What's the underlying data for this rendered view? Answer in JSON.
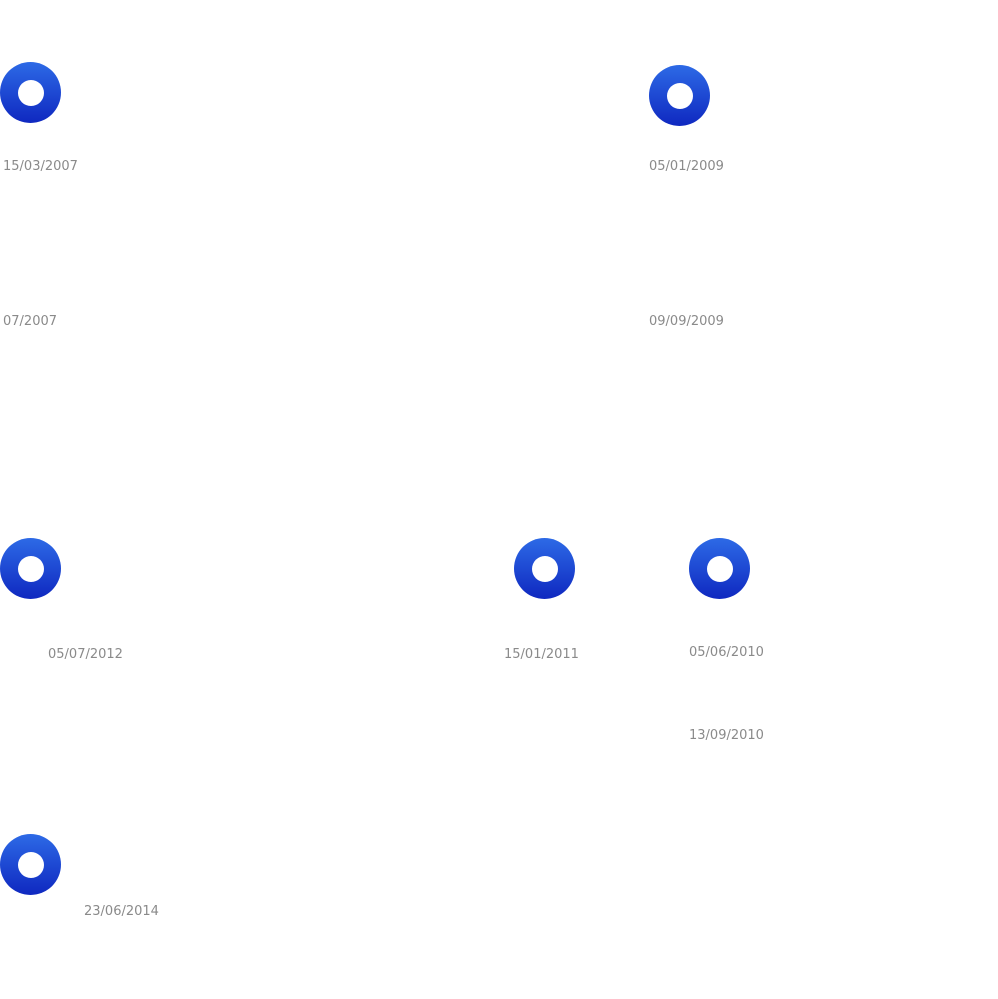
{
  "theme": {
    "marker_color_top": "#2d6ae6",
    "marker_color_bottom": "#0f28c0",
    "date_color": "#8a8a8a",
    "background": "#ffffff"
  },
  "markers": [
    {
      "icon": "ring-marker-icon"
    },
    {
      "icon": "ring-marker-icon"
    },
    {
      "icon": "ring-marker-icon"
    },
    {
      "icon": "ring-marker-icon"
    },
    {
      "icon": "ring-marker-icon"
    },
    {
      "icon": "ring-marker-icon"
    }
  ],
  "dates": [
    "15/03/2007",
    "05/01/2009",
    "07/2007",
    "09/09/2009",
    "05/07/2012",
    "15/01/2011",
    "05/06/2010",
    "13/09/2010",
    "23/06/2014"
  ]
}
